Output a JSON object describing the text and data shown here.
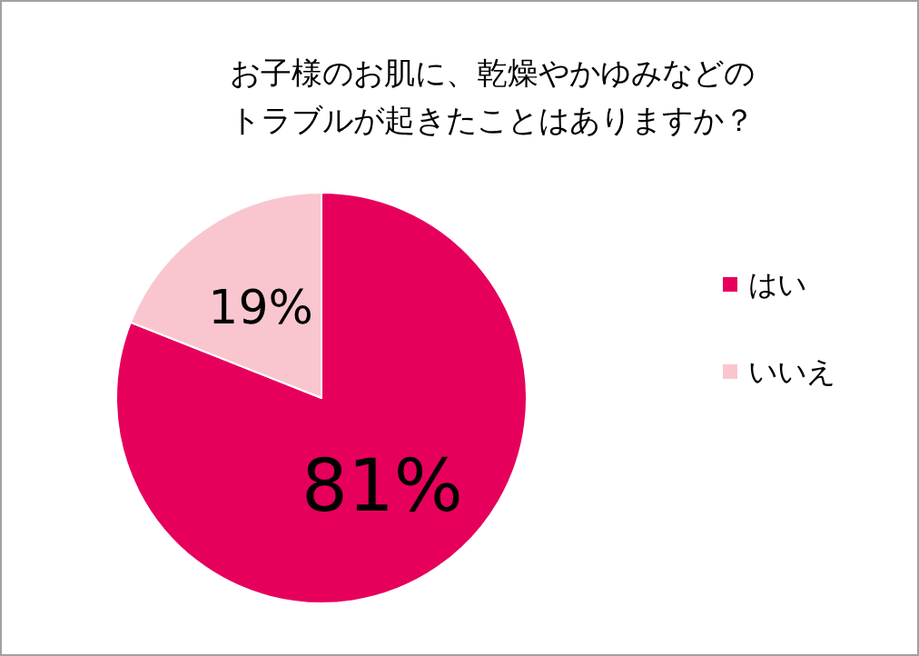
{
  "chart_data": {
    "type": "pie",
    "title": "お子様のお肌に、乾燥やかゆみなどのトラブルが起きたことはありますか？",
    "categories": [
      "はい",
      "いいえ"
    ],
    "values": [
      81,
      19
    ],
    "colors": [
      "#e6005c",
      "#f9c6cf"
    ],
    "value_labels": [
      "81%",
      "19%"
    ],
    "legend": "right"
  }
}
